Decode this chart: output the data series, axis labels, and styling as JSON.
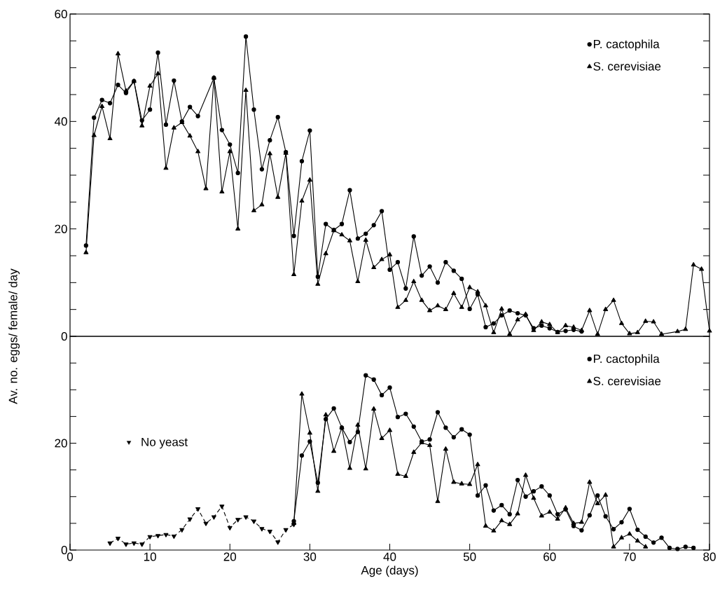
{
  "chart_data": [
    {
      "type": "line",
      "ylabel": "Av. no. eggs/ female/ day",
      "xlim": [
        0,
        80
      ],
      "ylim": [
        0,
        60
      ],
      "yticks": [
        0,
        {
          "value": 5,
          "label": null
        },
        {
          "value": 10,
          "label": null
        },
        {
          "value": 15,
          "label": null
        },
        20,
        {
          "value": 25,
          "label": null
        },
        {
          "value": 30,
          "label": null
        },
        {
          "value": 35,
          "label": null
        },
        40,
        {
          "value": 45,
          "label": null
        },
        {
          "value": 50,
          "label": null
        },
        {
          "value": 55,
          "label": null
        },
        60
      ],
      "tick_labels": "y",
      "legend": "top right",
      "series": [
        {
          "name": "P. cactophila",
          "color": "#000000",
          "marker": "circle",
          "line_style": "solid",
          "x": [
            2,
            3,
            4,
            5,
            6,
            7,
            8,
            9,
            10,
            11,
            12,
            13,
            14,
            15,
            16,
            18,
            19,
            20,
            21,
            22,
            23,
            24,
            25,
            26,
            27,
            28,
            29,
            30,
            31,
            32,
            33,
            34,
            35,
            36,
            37,
            38,
            39,
            40,
            41,
            42,
            43,
            44,
            45,
            46,
            47,
            48,
            49,
            50,
            51,
            52,
            53,
            54,
            55,
            56,
            57,
            58,
            59,
            60,
            61,
            62,
            63,
            64
          ],
          "values": [
            16.9,
            40.7,
            44.0,
            43.4,
            46.8,
            45.3,
            47.5,
            40.2,
            42.2,
            52.8,
            39.4,
            47.6,
            40.0,
            42.7,
            41.0,
            48.1,
            38.4,
            35.7,
            30.4,
            55.8,
            42.2,
            31.1,
            36.5,
            40.8,
            34.3,
            18.7,
            32.6,
            38.3,
            11.1,
            20.9,
            19.8,
            20.9,
            27.2,
            18.2,
            19.1,
            20.7,
            23.3,
            12.4,
            13.8,
            8.9,
            18.6,
            11.3,
            13.0,
            10.0,
            13.8,
            12.2,
            10.7,
            5.1,
            7.8,
            1.7,
            2.4,
            3.9,
            4.8,
            4.3,
            3.9,
            1.5,
            2.0,
            1.5,
            0.8,
            1.0,
            1.2,
            0.9
          ]
        },
        {
          "name": "S. cerevisiae",
          "color": "#000000",
          "marker": "triangle",
          "line_style": "solid",
          "x": [
            2,
            3,
            4,
            5,
            6,
            7,
            8,
            9,
            10,
            11,
            12,
            13,
            14,
            15,
            16,
            17,
            18,
            19,
            20,
            21,
            22,
            23,
            24,
            25,
            26,
            27,
            28,
            29,
            30,
            31,
            32,
            33,
            34,
            35,
            36,
            37,
            38,
            39,
            40,
            41,
            42,
            43,
            44,
            45,
            46,
            47,
            48,
            49,
            50,
            51,
            52,
            53,
            54,
            55,
            56,
            57,
            58,
            59,
            60,
            61,
            62,
            63,
            64,
            65,
            66,
            67,
            68,
            69,
            70,
            71,
            72,
            73,
            74,
            76,
            77,
            78,
            79,
            80
          ],
          "values": [
            15.6,
            37.4,
            42.8,
            36.8,
            52.6,
            45.7,
            47.5,
            39.2,
            46.6,
            48.9,
            31.3,
            38.8,
            39.8,
            37.3,
            34.4,
            27.5,
            48.1,
            26.9,
            34.4,
            20.0,
            45.8,
            23.4,
            24.5,
            34.0,
            25.9,
            34.1,
            11.5,
            25.2,
            29.1,
            9.7,
            15.4,
            19.7,
            18.9,
            17.8,
            10.2,
            17.9,
            12.8,
            14.3,
            15.2,
            5.4,
            6.7,
            10.2,
            6.7,
            4.8,
            5.7,
            5.0,
            8.0,
            5.4,
            9.1,
            8.3,
            5.7,
            0.7,
            5.1,
            0.4,
            3.1,
            4.1,
            1.1,
            2.7,
            2.2,
            0.7,
            2.0,
            1.7,
            1.1,
            4.8,
            0.4,
            5.0,
            6.7,
            2.4,
            0.5,
            0.7,
            2.8,
            2.7,
            0.4,
            0.9,
            1.3,
            13.3,
            12.5,
            1.0
          ]
        }
      ]
    },
    {
      "type": "line",
      "xlabel": "Age (days)",
      "xlim": [
        0,
        80
      ],
      "ylim": [
        0,
        40
      ],
      "xticks": [
        0,
        10,
        20,
        30,
        40,
        50,
        60,
        70,
        80
      ],
      "yticks": [
        0,
        {
          "value": 5,
          "label": null
        },
        {
          "value": 10,
          "label": null
        },
        {
          "value": 15,
          "label": null
        },
        20,
        {
          "value": 25,
          "label": null
        },
        {
          "value": 30,
          "label": null
        },
        {
          "value": 35,
          "label": null
        }
      ],
      "legend": "top right",
      "series": [
        {
          "name": "P. cactophila",
          "color": "#000000",
          "marker": "circle",
          "line_style": "solid",
          "x": [
            28,
            29,
            30,
            31,
            32,
            33,
            34,
            35,
            36,
            37,
            38,
            39,
            40,
            41,
            42,
            43,
            44,
            45,
            46,
            47,
            48,
            49,
            50,
            51,
            52,
            53,
            54,
            55,
            56,
            57,
            58,
            59,
            60,
            61,
            62,
            63,
            64,
            65,
            66,
            67,
            68,
            69,
            70,
            71,
            72,
            73,
            74,
            75,
            76,
            77,
            78
          ],
          "values": [
            5.4,
            17.7,
            20.3,
            12.6,
            24.5,
            26.5,
            22.9,
            20.2,
            22.1,
            32.7,
            31.9,
            29.0,
            30.4,
            24.9,
            25.5,
            23.1,
            20.3,
            20.7,
            25.8,
            22.9,
            21.1,
            22.6,
            21.6,
            10.2,
            12.1,
            7.4,
            8.4,
            6.7,
            13.1,
            10.0,
            11.0,
            11.9,
            10.2,
            6.7,
            7.6,
            4.5,
            3.7,
            6.5,
            10.2,
            6.3,
            3.9,
            5.2,
            7.7,
            3.8,
            2.5,
            1.4,
            2.3,
            0.4,
            0.2,
            0.6,
            0.4
          ]
        },
        {
          "name": "S. cerevisiae",
          "color": "#000000",
          "marker": "triangle",
          "line_style": "solid",
          "x": [
            28,
            29,
            30,
            31,
            32,
            33,
            34,
            35,
            36,
            37,
            38,
            39,
            40,
            41,
            42,
            43,
            44,
            45,
            46,
            47,
            48,
            49,
            50,
            51,
            52,
            53,
            54,
            55,
            56,
            57,
            58,
            59,
            60,
            61,
            62,
            63,
            64,
            65,
            66,
            67,
            68,
            69,
            70,
            71,
            72
          ],
          "values": [
            5.0,
            29.2,
            21.9,
            11.0,
            25.3,
            18.5,
            22.9,
            15.3,
            23.4,
            15.2,
            26.4,
            20.9,
            22.4,
            14.2,
            13.8,
            18.3,
            20.1,
            19.6,
            9.1,
            18.9,
            12.7,
            12.4,
            12.3,
            16.0,
            4.5,
            3.6,
            5.5,
            4.8,
            6.8,
            14.0,
            9.7,
            6.4,
            7.1,
            5.8,
            7.9,
            5.0,
            5.2,
            12.7,
            8.7,
            10.3,
            0.6,
            2.3,
            3.0,
            1.7,
            0.6
          ]
        },
        {
          "name": "No yeast",
          "color": "#000000",
          "marker": "triangle_down",
          "line_style": "dashed",
          "x": [
            5,
            6,
            7,
            8,
            9,
            10,
            11,
            12,
            13,
            14,
            15,
            16,
            17,
            18,
            19,
            20,
            21,
            22,
            23,
            24,
            25,
            26,
            27,
            28
          ],
          "values": [
            1.3,
            2.2,
            1.1,
            1.3,
            1.1,
            2.5,
            2.7,
            2.9,
            2.6,
            3.8,
            5.8,
            7.7,
            5.0,
            6.2,
            8.2,
            4.2,
            5.7,
            6.2,
            5.4,
            4.0,
            3.5,
            1.5,
            3.8,
            4.8
          ]
        }
      ]
    }
  ]
}
